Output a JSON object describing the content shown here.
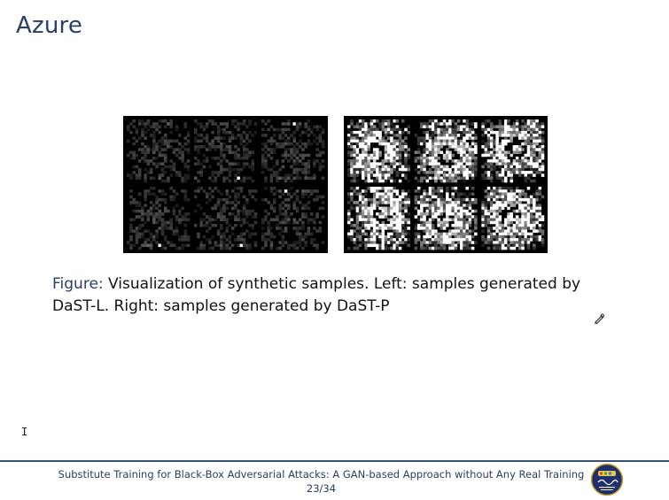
{
  "slide": {
    "title": "Azure"
  },
  "figure": {
    "caption_label": "Figure:",
    "caption_text": "Visualization of synthetic samples. Left: samples generated by DaST-L. Right: samples generated by DaST-P",
    "left_panel": {
      "grid_rows": 2,
      "grid_cols": 3,
      "style": "sparse"
    },
    "right_panel": {
      "grid_rows": 2,
      "grid_cols": 3,
      "style": "dense"
    }
  },
  "footer": {
    "title": "Substitute Training for Black-Box Adversarial Attacks: A GAN-based Approach without Any Real Training",
    "page": "23/34"
  },
  "colors": {
    "title": "#2b3e66",
    "caption_label": "#2b3e66",
    "footer_rule": "#3c4f78"
  },
  "icons": [
    "text-cursor-icon",
    "pen-annotation-icon",
    "program-logo-icon"
  ]
}
